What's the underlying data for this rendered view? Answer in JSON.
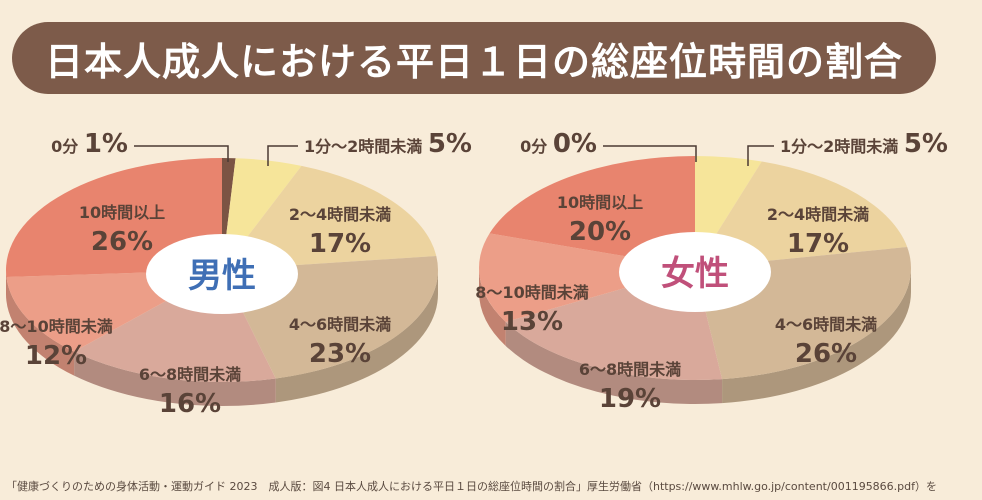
{
  "title": "日本人成人における平日１日の総座位時間の割合",
  "footer": "「健康づくりのための身体活動・運動ガイド 2023　成人版：図4 日本人成人における平日１日の総座位時間の割合」厚生労働省（https://www.mhlw.go.jp/content/001195866.pdf）を",
  "chart_data": [
    {
      "type": "pie",
      "center_label": "男性",
      "slices": [
        {
          "label": "0分",
          "value": 1,
          "display": "1%",
          "color": "#7b5444"
        },
        {
          "label": "1分〜2時間未満",
          "value": 5,
          "display": "5%",
          "color": "#f6e59a"
        },
        {
          "label": "2〜4時間未満",
          "value": 17,
          "display": "17%",
          "color": "#ecd39f"
        },
        {
          "label": "4〜6時間未満",
          "value": 23,
          "display": "23%",
          "color": "#d3b897"
        },
        {
          "label": "6〜8時間未満",
          "value": 16,
          "display": "16%",
          "color": "#d9a99b"
        },
        {
          "label": "8〜10時間未満",
          "value": 12,
          "display": "12%",
          "color": "#ec9e88"
        },
        {
          "label": "10時間以上",
          "value": 26,
          "display": "26%",
          "color": "#e8846e"
        }
      ]
    },
    {
      "type": "pie",
      "center_label": "女性",
      "slices": [
        {
          "label": "0分",
          "value": 0,
          "display": "0%",
          "color": "#7b5444"
        },
        {
          "label": "1分〜2時間未満",
          "value": 5,
          "display": "5%",
          "color": "#f6e59a"
        },
        {
          "label": "2〜4時間未満",
          "value": 17,
          "display": "17%",
          "color": "#ecd39f"
        },
        {
          "label": "4〜6時間未満",
          "value": 26,
          "display": "26%",
          "color": "#d3b897"
        },
        {
          "label": "6〜8時間未満",
          "value": 19,
          "display": "19%",
          "color": "#d9a99b"
        },
        {
          "label": "8〜10時間未満",
          "value": 13,
          "display": "13%",
          "color": "#ec9e88"
        },
        {
          "label": "10時間以上",
          "value": 20,
          "display": "20%",
          "color": "#e8846e"
        }
      ]
    }
  ],
  "colors": {
    "title_bg": "#7d5b4a",
    "male_accent": "#3f6fb5",
    "female_accent": "#c0507a",
    "label_text": "#5a4338"
  }
}
